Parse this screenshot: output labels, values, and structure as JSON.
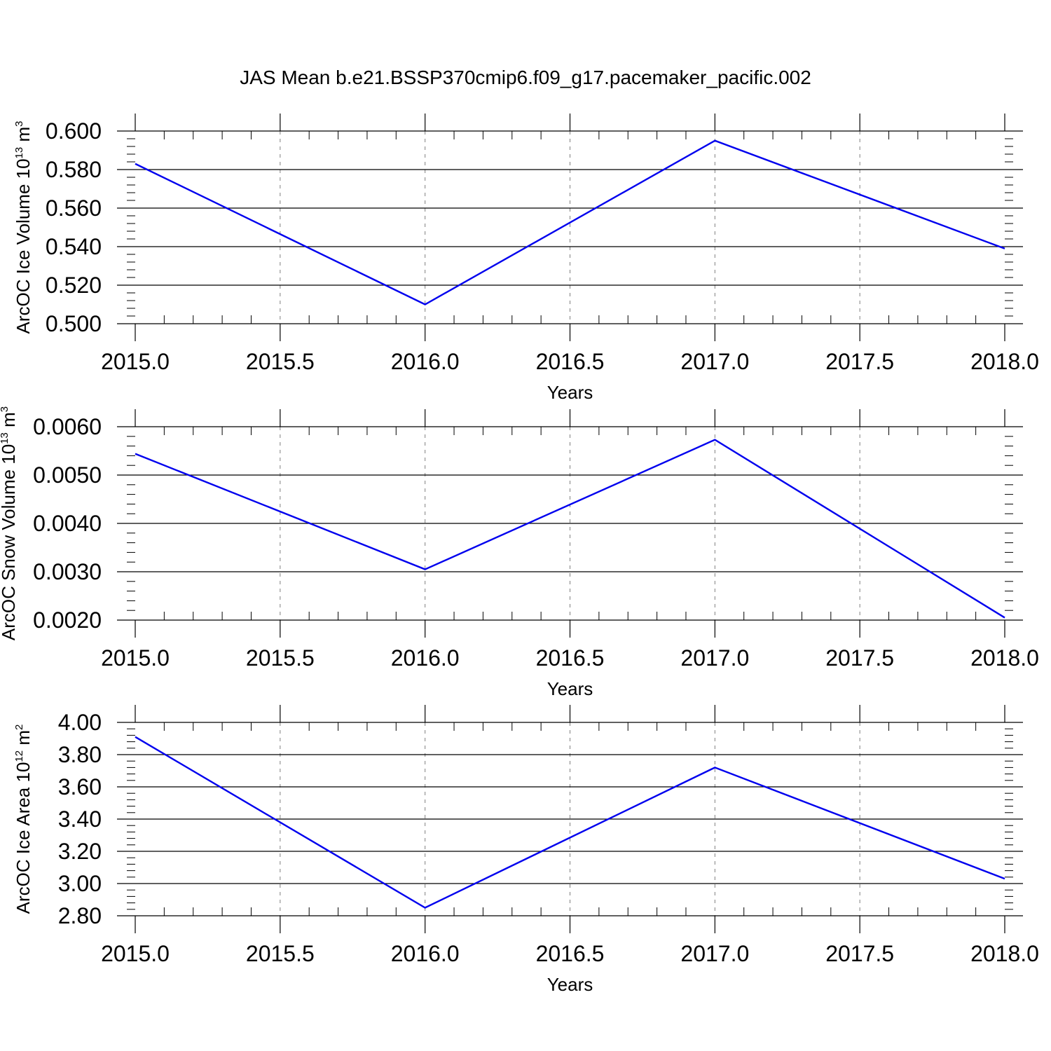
{
  "title": "JAS Mean b.e21.BSSP370cmip6.f09_g17.pacemaker_pacific.002",
  "colors": {
    "series": "#0000ee",
    "axis": "#000000",
    "grid": "#7f7f7f"
  },
  "chart_data": [
    {
      "type": "line",
      "title": "JAS Mean b.e21.BSSP370cmip6.f09_g17.pacemaker_pacific.002",
      "xlabel": "Years",
      "ylabel": {
        "text": "ArcOC Ice Volume 10",
        "sup1": "13",
        "unit": " m",
        "sup2": "3"
      },
      "x": [
        2015.0,
        2016.0,
        2017.0,
        2018.0
      ],
      "series": [
        {
          "values": [
            0.583,
            0.51,
            0.595,
            0.539
          ]
        }
      ],
      "xlim": [
        2015.0,
        2018.0
      ],
      "ylim": [
        0.5,
        0.6
      ],
      "xticks": [
        "2015.0",
        "2015.5",
        "2016.0",
        "2016.5",
        "2017.0",
        "2017.5",
        "2018.0"
      ],
      "yticks": [
        "0.500",
        "0.520",
        "0.540",
        "0.560",
        "0.580",
        "0.600"
      ],
      "grid": "vertical dashed"
    },
    {
      "type": "line",
      "xlabel": "Years",
      "ylabel": {
        "text": "ArcOC Snow Volume 10",
        "sup1": "13",
        "unit": " m",
        "sup2": "3"
      },
      "x": [
        2015.0,
        2016.0,
        2017.0,
        2018.0
      ],
      "series": [
        {
          "values": [
            0.00544,
            0.00305,
            0.00573,
            0.00205
          ]
        }
      ],
      "xlim": [
        2015.0,
        2018.0
      ],
      "ylim": [
        0.002,
        0.006
      ],
      "xticks": [
        "2015.0",
        "2015.5",
        "2016.0",
        "2016.5",
        "2017.0",
        "2017.5",
        "2018.0"
      ],
      "yticks": [
        "0.0020",
        "0.0030",
        "0.0040",
        "0.0050",
        "0.0060"
      ],
      "grid": "vertical dashed"
    },
    {
      "type": "line",
      "xlabel": "Years",
      "ylabel": {
        "text": "ArcOC Ice Area 10",
        "sup1": "12",
        "unit": " m",
        "sup2": "2"
      },
      "x": [
        2015.0,
        2016.0,
        2017.0,
        2018.0
      ],
      "series": [
        {
          "values": [
            3.91,
            2.85,
            3.72,
            3.03
          ]
        }
      ],
      "xlim": [
        2015.0,
        2018.0
      ],
      "ylim": [
        2.8,
        4.0
      ],
      "xticks": [
        "2015.0",
        "2015.5",
        "2016.0",
        "2016.5",
        "2017.0",
        "2017.5",
        "2018.0"
      ],
      "yticks": [
        "2.80",
        "3.00",
        "3.20",
        "3.40",
        "3.60",
        "3.80",
        "4.00"
      ],
      "grid": "vertical dashed"
    }
  ]
}
